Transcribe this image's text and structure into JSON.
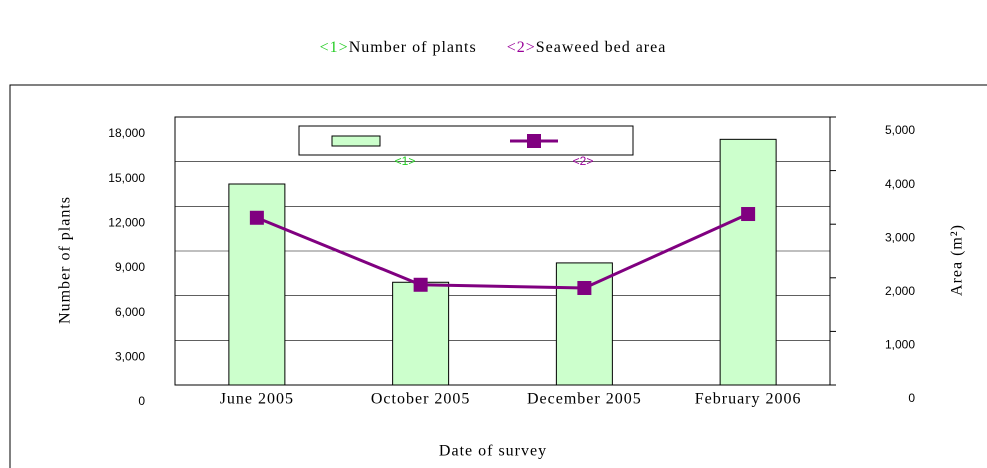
{
  "chart_data": {
    "type": "bar_line",
    "categories": [
      "June 2005",
      "October 2005",
      "December 2005",
      "February 2006"
    ],
    "series": [
      {
        "name": "Number of plants",
        "tag": "<1>",
        "tag_color": "#22cc22",
        "color": "#ccffcc",
        "type": "bar",
        "axis": "y",
        "values": [
          13500,
          6900,
          8200,
          16500
        ]
      },
      {
        "name": "Seaweed bed area",
        "tag": "<2>",
        "tag_color": "#990099",
        "color": "#800080",
        "type": "line",
        "axis": "y2",
        "values": [
          3120,
          1870,
          1810,
          3190
        ]
      }
    ],
    "xlabel": "Date of survey",
    "ylabel": "Number of plants",
    "y2label": "Area (m²)",
    "ylim": [
      0,
      18000
    ],
    "yticks": [
      0,
      {
        "value": 3000,
        "label": "3,000"
      },
      {
        "value": 6000,
        "label": "6,000"
      },
      {
        "value": 9000,
        "label": "9,000"
      },
      {
        "value": 12000,
        "label": "12,000"
      },
      {
        "value": 15000,
        "label": "15,000"
      },
      {
        "value": 18000,
        "label": "18,000"
      }
    ],
    "y2lim": [
      0,
      5000
    ],
    "y2ticks": [
      0,
      {
        "value": 1000,
        "label": "1,000"
      },
      {
        "value": 2000,
        "label": "2,000"
      },
      {
        "value": 3000,
        "label": "3,000"
      },
      {
        "value": 4000,
        "label": "4,000"
      },
      {
        "value": 5000,
        "label": "5,000"
      }
    ],
    "grid": true
  }
}
